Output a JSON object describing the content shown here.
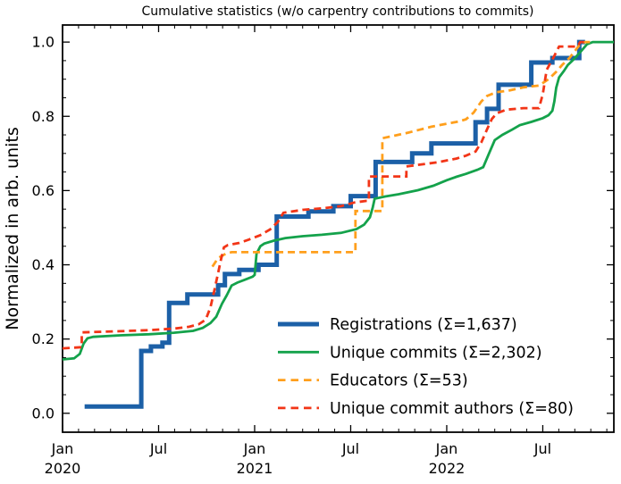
{
  "chart_data": {
    "type": "line",
    "title": "Cumulative statistics (w/o carpentry contributions to commits)",
    "xlabel": "",
    "ylabel": "Normalized in arb. units",
    "xlim": [
      2020.0,
      2022.87
    ],
    "ylim": [
      -0.051,
      1.046
    ],
    "grid": false,
    "x_axis": {
      "unit": "year",
      "major_ticks": [
        {
          "pos": 2020.0,
          "month": "Jan",
          "year": "2020"
        },
        {
          "pos": 2020.5,
          "month": "Jul",
          "year": ""
        },
        {
          "pos": 2021.0,
          "month": "Jan",
          "year": "2021"
        },
        {
          "pos": 2021.5,
          "month": "Jul",
          "year": ""
        },
        {
          "pos": 2022.0,
          "month": "Jan",
          "year": "2022"
        },
        {
          "pos": 2022.5,
          "month": "Jul",
          "year": ""
        }
      ],
      "minor_ticks_per_year": 12
    },
    "y_axis": {
      "major_ticks": [
        {
          "pos": 0.0,
          "label": "0.0"
        },
        {
          "pos": 0.2,
          "label": "0.2"
        },
        {
          "pos": 0.4,
          "label": "0.4"
        },
        {
          "pos": 0.6,
          "label": "0.6"
        },
        {
          "pos": 0.8,
          "label": "0.8"
        },
        {
          "pos": 1.0,
          "label": "1.0"
        }
      ],
      "minor_step": 0.05
    },
    "legend": {
      "position": "lower right",
      "frame": false
    },
    "series": [
      {
        "id": "registrations",
        "name": "Registrations",
        "legend_label": "Registrations  (Σ=1,637)",
        "total": "1,637",
        "color": "#1c60a7",
        "width": 5,
        "dash": null,
        "points": [
          [
            2020.115,
            0.018
          ],
          [
            2020.41,
            0.018
          ],
          [
            2020.41,
            0.168
          ],
          [
            2020.46,
            0.168
          ],
          [
            2020.46,
            0.18
          ],
          [
            2020.52,
            0.18
          ],
          [
            2020.52,
            0.19
          ],
          [
            2020.555,
            0.19
          ],
          [
            2020.555,
            0.297
          ],
          [
            2020.65,
            0.297
          ],
          [
            2020.65,
            0.32
          ],
          [
            2020.81,
            0.32
          ],
          [
            2020.81,
            0.345
          ],
          [
            2020.845,
            0.345
          ],
          [
            2020.845,
            0.375
          ],
          [
            2020.92,
            0.375
          ],
          [
            2020.92,
            0.386
          ],
          [
            2021.02,
            0.386
          ],
          [
            2021.02,
            0.4
          ],
          [
            2021.115,
            0.4
          ],
          [
            2021.115,
            0.53
          ],
          [
            2021.28,
            0.53
          ],
          [
            2021.28,
            0.544
          ],
          [
            2021.41,
            0.544
          ],
          [
            2021.41,
            0.558
          ],
          [
            2021.5,
            0.558
          ],
          [
            2021.5,
            0.585
          ],
          [
            2021.63,
            0.585
          ],
          [
            2021.63,
            0.677
          ],
          [
            2021.82,
            0.677
          ],
          [
            2021.82,
            0.7
          ],
          [
            2021.92,
            0.7
          ],
          [
            2021.92,
            0.727
          ],
          [
            2022.15,
            0.727
          ],
          [
            2022.15,
            0.784
          ],
          [
            2022.21,
            0.784
          ],
          [
            2022.21,
            0.82
          ],
          [
            2022.27,
            0.82
          ],
          [
            2022.27,
            0.885
          ],
          [
            2022.44,
            0.885
          ],
          [
            2022.44,
            0.945
          ],
          [
            2022.55,
            0.945
          ],
          [
            2022.55,
            0.957
          ],
          [
            2022.69,
            0.957
          ],
          [
            2022.69,
            1.0
          ],
          [
            2022.72,
            1.0
          ]
        ]
      },
      {
        "id": "unique-commits",
        "name": "Unique commits",
        "legend_label": "Unique commits (Σ=2,302)",
        "total": "2,302",
        "color": "#14a24b",
        "width": 2.8,
        "dash": null,
        "points": [
          [
            2020.0,
            0.145
          ],
          [
            2020.06,
            0.148
          ],
          [
            2020.09,
            0.16
          ],
          [
            2020.11,
            0.188
          ],
          [
            2020.13,
            0.202
          ],
          [
            2020.16,
            0.206
          ],
          [
            2020.3,
            0.21
          ],
          [
            2020.45,
            0.213
          ],
          [
            2020.58,
            0.217
          ],
          [
            2020.68,
            0.222
          ],
          [
            2020.73,
            0.23
          ],
          [
            2020.77,
            0.243
          ],
          [
            2020.8,
            0.26
          ],
          [
            2020.83,
            0.295
          ],
          [
            2020.855,
            0.318
          ],
          [
            2020.88,
            0.344
          ],
          [
            2020.91,
            0.352
          ],
          [
            2020.95,
            0.36
          ],
          [
            2020.99,
            0.368
          ],
          [
            2021.0,
            0.373
          ],
          [
            2021.01,
            0.43
          ],
          [
            2021.03,
            0.45
          ],
          [
            2021.05,
            0.457
          ],
          [
            2021.1,
            0.465
          ],
          [
            2021.16,
            0.472
          ],
          [
            2021.25,
            0.477
          ],
          [
            2021.35,
            0.481
          ],
          [
            2021.45,
            0.486
          ],
          [
            2021.53,
            0.496
          ],
          [
            2021.57,
            0.508
          ],
          [
            2021.6,
            0.528
          ],
          [
            2021.615,
            0.555
          ],
          [
            2021.625,
            0.578
          ],
          [
            2021.68,
            0.584
          ],
          [
            2021.75,
            0.59
          ],
          [
            2021.85,
            0.601
          ],
          [
            2021.93,
            0.613
          ],
          [
            2022.0,
            0.628
          ],
          [
            2022.05,
            0.637
          ],
          [
            2022.1,
            0.645
          ],
          [
            2022.16,
            0.656
          ],
          [
            2022.19,
            0.663
          ],
          [
            2022.22,
            0.7
          ],
          [
            2022.25,
            0.736
          ],
          [
            2022.29,
            0.75
          ],
          [
            2022.34,
            0.764
          ],
          [
            2022.38,
            0.776
          ],
          [
            2022.44,
            0.785
          ],
          [
            2022.5,
            0.795
          ],
          [
            2022.53,
            0.803
          ],
          [
            2022.55,
            0.815
          ],
          [
            2022.56,
            0.84
          ],
          [
            2022.57,
            0.877
          ],
          [
            2022.585,
            0.905
          ],
          [
            2022.61,
            0.922
          ],
          [
            2022.63,
            0.938
          ],
          [
            2022.66,
            0.953
          ],
          [
            2022.7,
            0.976
          ],
          [
            2022.73,
            0.994
          ],
          [
            2022.76,
            1.0
          ],
          [
            2022.87,
            1.0
          ]
        ]
      },
      {
        "id": "educators",
        "name": "Educators",
        "legend_label": "Educators (Σ=53)",
        "total": "53",
        "color": "#ff9f1c",
        "width": 2.8,
        "dash": "8,5",
        "points": [
          [
            2020.78,
            0.395
          ],
          [
            2020.81,
            0.418
          ],
          [
            2020.85,
            0.43
          ],
          [
            2020.88,
            0.434
          ],
          [
            2021.525,
            0.434
          ],
          [
            2021.525,
            0.545
          ],
          [
            2021.665,
            0.545
          ],
          [
            2021.665,
            0.741
          ],
          [
            2021.72,
            0.747
          ],
          [
            2021.8,
            0.756
          ],
          [
            2021.92,
            0.772
          ],
          [
            2022.0,
            0.78
          ],
          [
            2022.06,
            0.786
          ],
          [
            2022.1,
            0.792
          ],
          [
            2022.14,
            0.81
          ],
          [
            2022.18,
            0.84
          ],
          [
            2022.21,
            0.855
          ],
          [
            2022.26,
            0.865
          ],
          [
            2022.32,
            0.869
          ],
          [
            2022.4,
            0.878
          ],
          [
            2022.48,
            0.883
          ],
          [
            2022.53,
            0.9
          ],
          [
            2022.57,
            0.92
          ],
          [
            2022.6,
            0.938
          ],
          [
            2022.64,
            0.958
          ],
          [
            2022.67,
            0.978
          ],
          [
            2022.7,
            0.998
          ],
          [
            2022.72,
            1.0
          ],
          [
            2022.76,
            1.0
          ]
        ]
      },
      {
        "id": "unique-commit-authors",
        "name": "Unique commit authors",
        "legend_label": "Unique commit authors (Σ=80)",
        "total": "80",
        "color": "#f23517",
        "width": 2.8,
        "dash": "8,5",
        "points": [
          [
            2020.0,
            0.175
          ],
          [
            2020.1,
            0.178
          ],
          [
            2020.1,
            0.218
          ],
          [
            2020.3,
            0.221
          ],
          [
            2020.45,
            0.224
          ],
          [
            2020.58,
            0.228
          ],
          [
            2020.66,
            0.233
          ],
          [
            2020.71,
            0.24
          ],
          [
            2020.745,
            0.252
          ],
          [
            2020.77,
            0.285
          ],
          [
            2020.79,
            0.33
          ],
          [
            2020.81,
            0.378
          ],
          [
            2020.825,
            0.415
          ],
          [
            2020.84,
            0.447
          ],
          [
            2020.86,
            0.453
          ],
          [
            2020.92,
            0.459
          ],
          [
            2020.97,
            0.468
          ],
          [
            2021.03,
            0.48
          ],
          [
            2021.08,
            0.495
          ],
          [
            2021.12,
            0.515
          ],
          [
            2021.15,
            0.54
          ],
          [
            2021.25,
            0.548
          ],
          [
            2021.35,
            0.552
          ],
          [
            2021.45,
            0.558
          ],
          [
            2021.52,
            0.568
          ],
          [
            2021.58,
            0.572
          ],
          [
            2021.595,
            0.572
          ],
          [
            2021.595,
            0.638
          ],
          [
            2021.79,
            0.638
          ],
          [
            2021.79,
            0.665
          ],
          [
            2021.95,
            0.676
          ],
          [
            2022.05,
            0.686
          ],
          [
            2022.1,
            0.694
          ],
          [
            2022.15,
            0.705
          ],
          [
            2022.18,
            0.73
          ],
          [
            2022.21,
            0.765
          ],
          [
            2022.235,
            0.793
          ],
          [
            2022.26,
            0.808
          ],
          [
            2022.31,
            0.818
          ],
          [
            2022.4,
            0.822
          ],
          [
            2022.48,
            0.822
          ],
          [
            2022.5,
            0.86
          ],
          [
            2022.52,
            0.925
          ],
          [
            2022.555,
            0.958
          ],
          [
            2022.585,
            0.988
          ],
          [
            2022.68,
            0.988
          ],
          [
            2022.695,
            1.0
          ],
          [
            2022.715,
            1.0
          ]
        ]
      }
    ]
  }
}
